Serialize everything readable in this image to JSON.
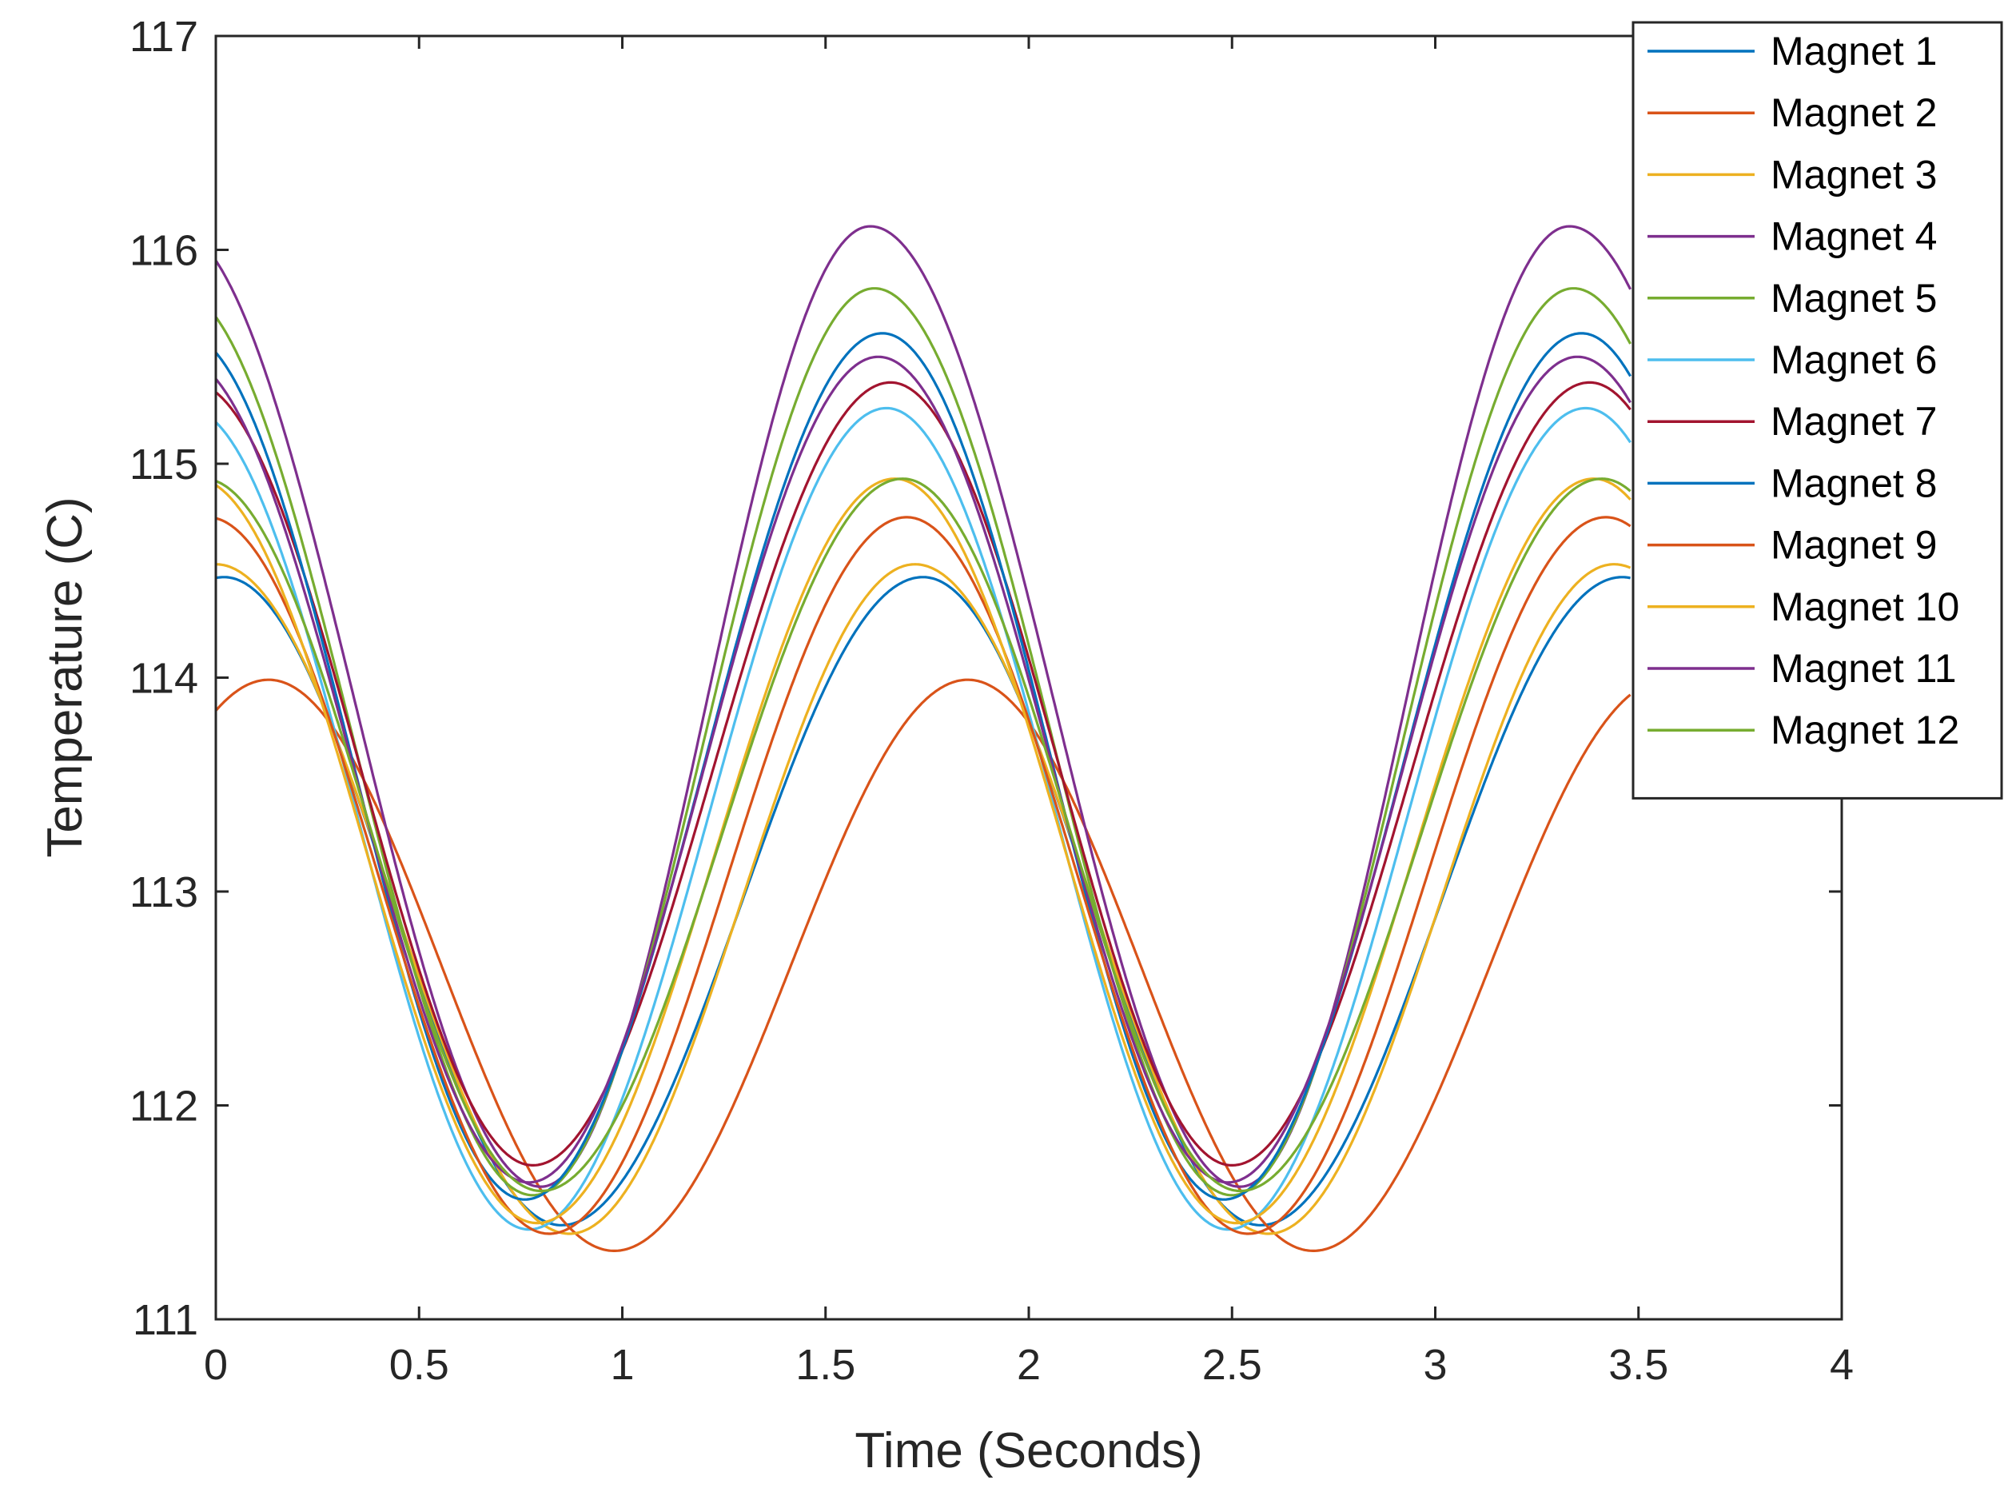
{
  "chart_data": {
    "type": "line",
    "title": "",
    "xlabel": "Time (Seconds)",
    "ylabel": "Temperature (C)",
    "xlim": [
      0,
      4
    ],
    "ylim": [
      111,
      117
    ],
    "xticks": [
      0,
      0.5,
      1,
      1.5,
      2,
      2.5,
      3,
      3.5,
      4
    ],
    "xtick_labels": [
      "0",
      "0.5",
      "1",
      "1.5",
      "2",
      "2.5",
      "3",
      "3.5",
      "4"
    ],
    "yticks": [
      111,
      112,
      113,
      114,
      115,
      116,
      117
    ],
    "ytick_labels": [
      "111",
      "112",
      "113",
      "114",
      "115",
      "116",
      "117"
    ],
    "grid": false,
    "legend_position": "top-right",
    "period": 1.72,
    "x_end": 3.48,
    "series": [
      {
        "name": "Magnet 1",
        "color": "#0072BD",
        "min": 111.44,
        "max": 114.47,
        "t_min": 0.85,
        "t_max": 1.74
      },
      {
        "name": "Magnet 2",
        "color": "#D95319",
        "min": 111.32,
        "max": 113.99,
        "t_min": 0.98,
        "t_max": 1.85
      },
      {
        "name": "Magnet 3",
        "color": "#EDB120",
        "min": 111.4,
        "max": 114.53,
        "t_min": 0.87,
        "t_max": 1.72
      },
      {
        "name": "Magnet 4",
        "color": "#7E2F8E",
        "min": 111.62,
        "max": 116.11,
        "t_min": 0.8,
        "t_max": 1.61
      },
      {
        "name": "Magnet 5",
        "color": "#77AC30",
        "min": 111.58,
        "max": 115.82,
        "t_min": 0.78,
        "t_max": 1.62
      },
      {
        "name": "Magnet 6",
        "color": "#4DBEEE",
        "min": 111.42,
        "max": 115.26,
        "t_min": 0.77,
        "t_max": 1.65
      },
      {
        "name": "Magnet 7",
        "color": "#A2142F",
        "min": 111.72,
        "max": 115.38,
        "t_min": 0.78,
        "t_max": 1.66
      },
      {
        "name": "Magnet 8",
        "color": "#0072BD",
        "min": 111.56,
        "max": 115.61,
        "t_min": 0.76,
        "t_max": 1.64
      },
      {
        "name": "Magnet 9",
        "color": "#D95319",
        "min": 111.4,
        "max": 114.75,
        "t_min": 0.82,
        "t_max": 1.7
      },
      {
        "name": "Magnet 10",
        "color": "#EDB120",
        "min": 111.45,
        "max": 114.93,
        "t_min": 0.79,
        "t_max": 1.67
      },
      {
        "name": "Magnet 11",
        "color": "#7E2F8E",
        "min": 111.64,
        "max": 115.5,
        "t_min": 0.77,
        "t_max": 1.63
      },
      {
        "name": "Magnet 12",
        "color": "#77AC30",
        "min": 111.6,
        "max": 114.93,
        "t_min": 0.8,
        "t_max": 1.69
      }
    ]
  }
}
